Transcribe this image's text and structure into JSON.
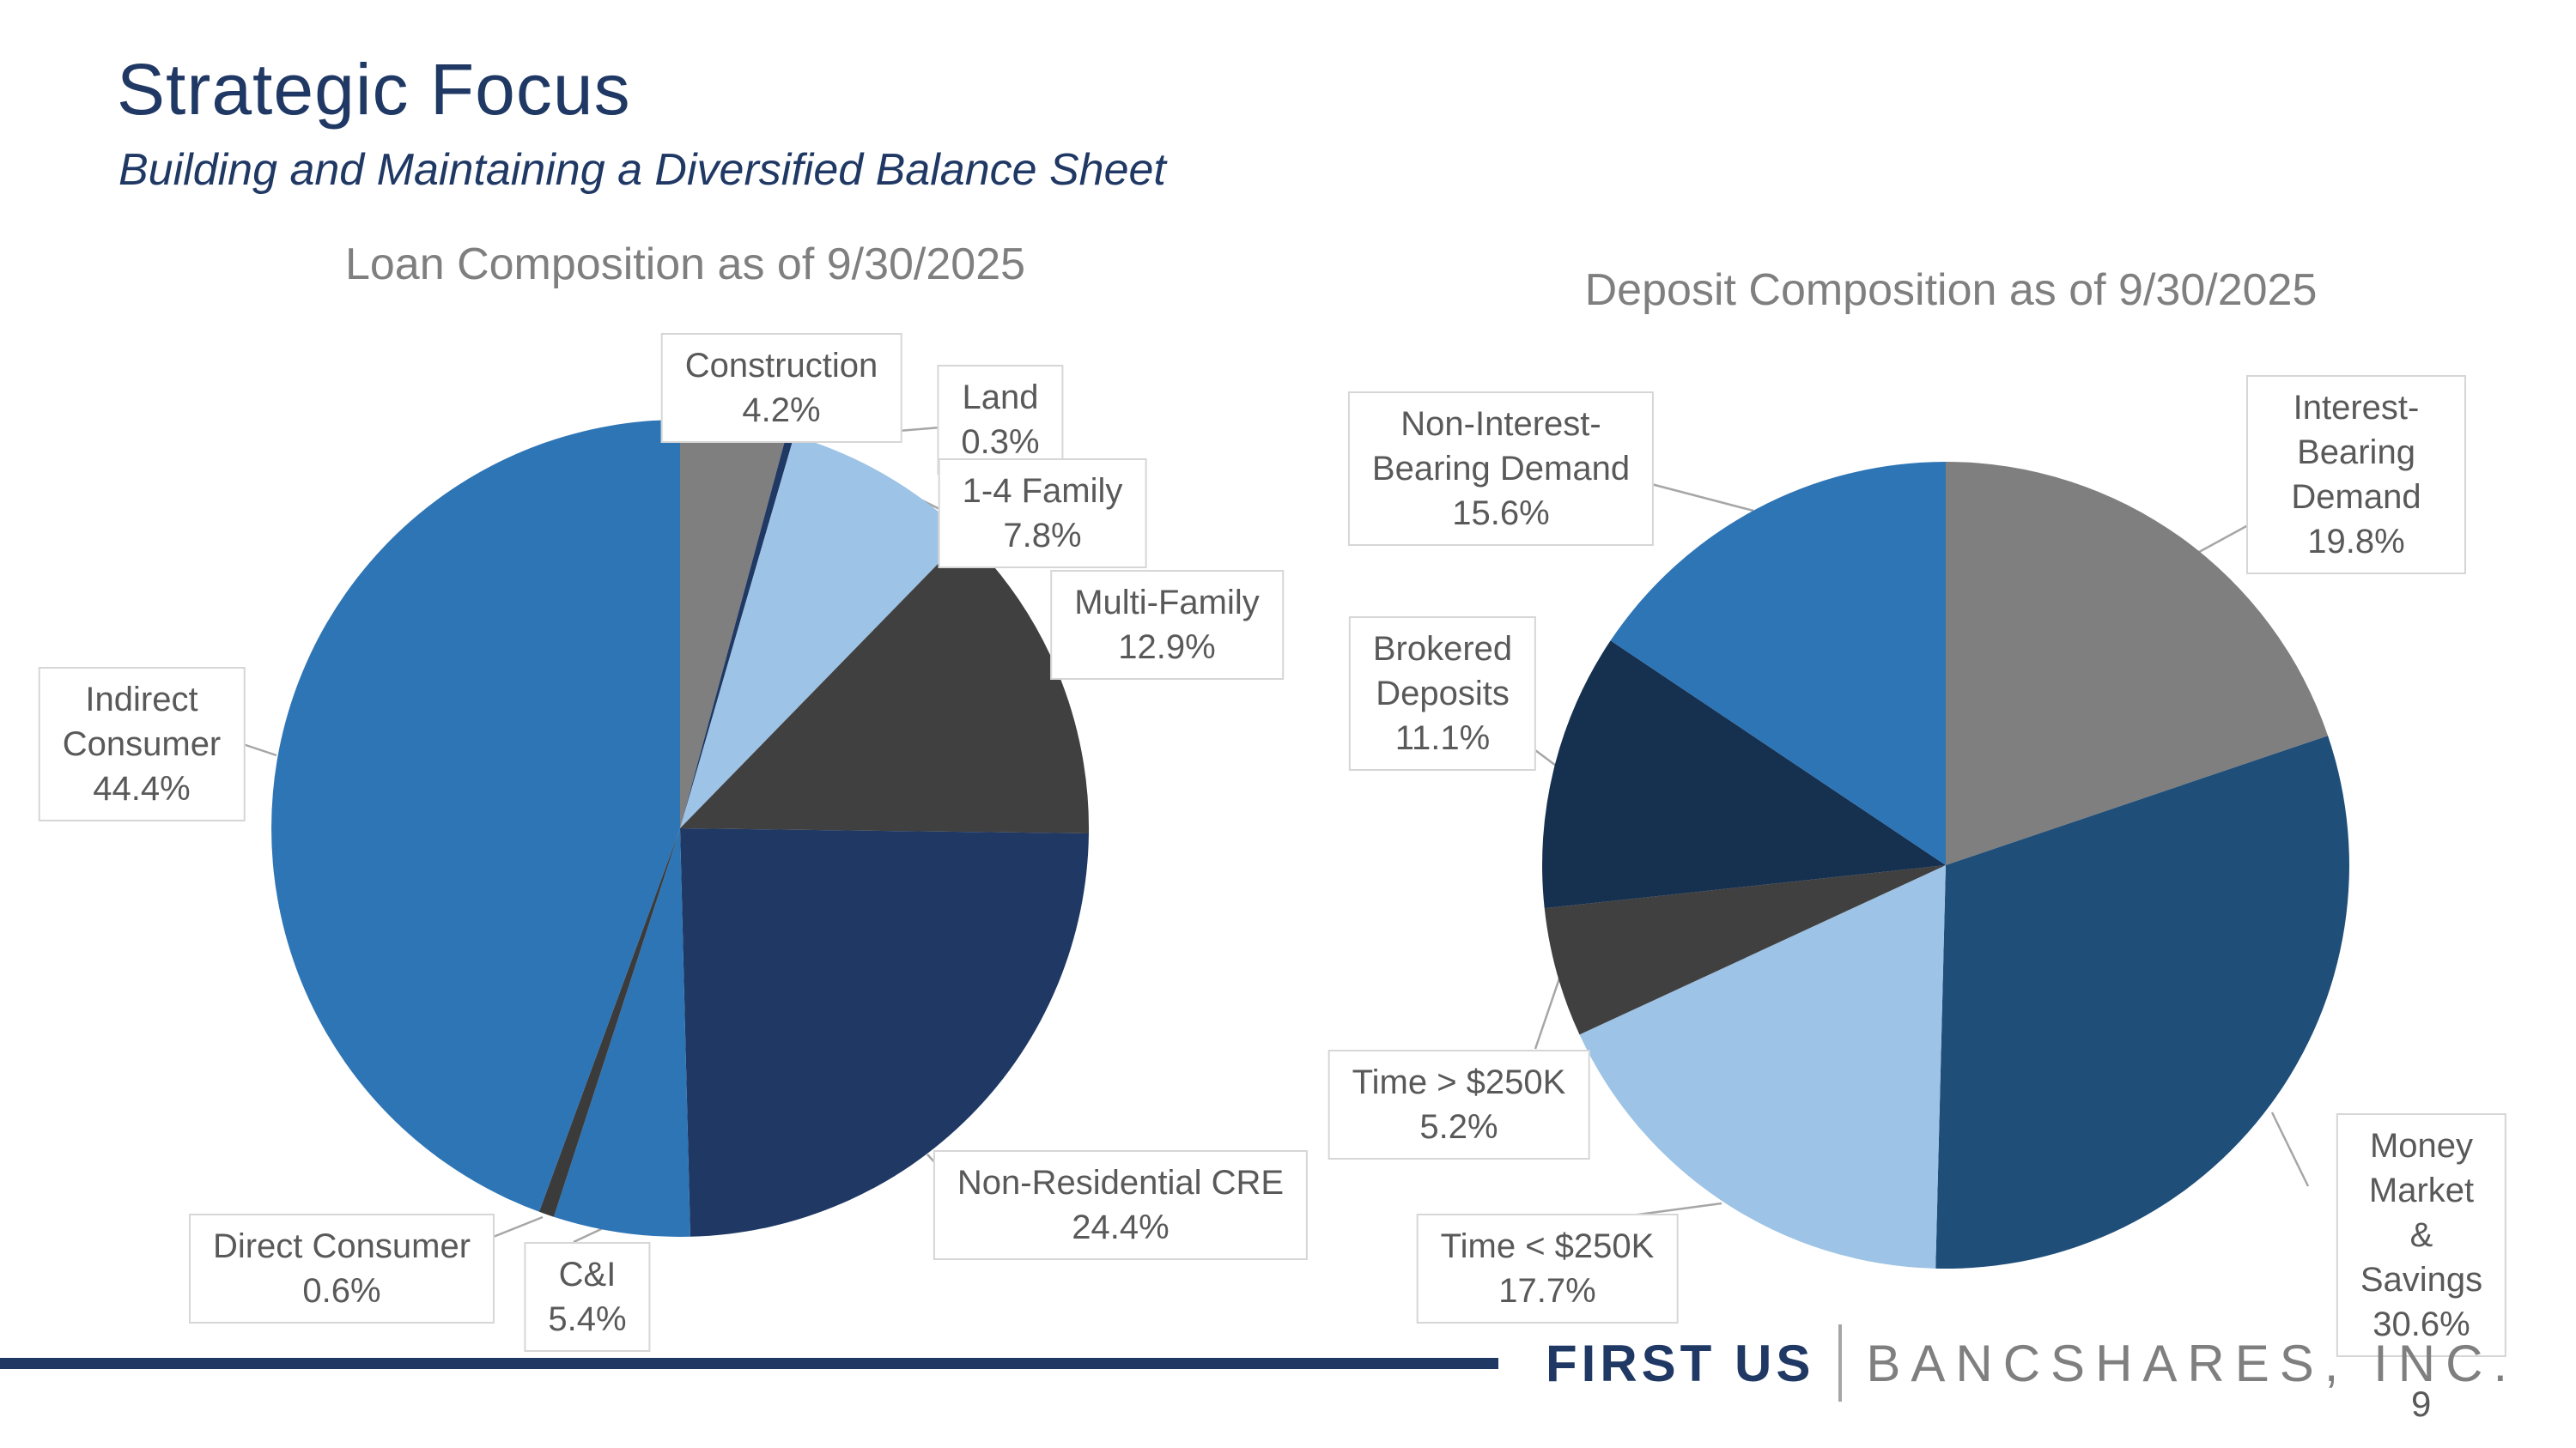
{
  "slide": {
    "title": "Strategic Focus",
    "subtitle": "Building and Maintaining a Diversified Balance Sheet",
    "page_number": "9",
    "footer": {
      "brand_left": "FIRST US",
      "brand_right": "BANCSHARES, INC."
    }
  },
  "colors": {
    "title_navy": "#1F3864",
    "chart_title_gray": "#7F7F7F",
    "callout_text": "#595959",
    "callout_border": "#D6D6D6",
    "leader_line": "#A6A6A6",
    "footer_rule": "#1F3864",
    "brand_gray": "#7F7F7F"
  },
  "chart_data": [
    {
      "type": "pie",
      "title": "Loan Composition as of 9/30/2025",
      "start_angle_deg": 0,
      "direction": "clockwise",
      "legend_position": "none",
      "slices": [
        {
          "name": "Construction",
          "value": 4.2,
          "color": "#7F7F7F",
          "label": "Construction\n4.2%"
        },
        {
          "name": "Land",
          "value": 0.3,
          "color": "#1F3864",
          "label": "Land\n0.3%"
        },
        {
          "name": "1-4 Family",
          "value": 7.8,
          "color": "#9DC3E6",
          "label": "1-4 Family\n7.8%"
        },
        {
          "name": "Multi-Family",
          "value": 12.9,
          "color": "#404040",
          "label": "Multi-Family\n12.9%"
        },
        {
          "name": "Non-Residential CRE",
          "value": 24.4,
          "color": "#1F3864",
          "label": "Non-Residential CRE\n24.4%"
        },
        {
          "name": "C&I",
          "value": 5.4,
          "color": "#2E75B6",
          "label": "C&I\n5.4%"
        },
        {
          "name": "Direct Consumer",
          "value": 0.6,
          "color": "#3B3B3B",
          "label": "Direct Consumer\n0.6%"
        },
        {
          "name": "Indirect Consumer",
          "value": 44.4,
          "color": "#2E75B6",
          "label": "Indirect\nConsumer\n44.4%"
        }
      ]
    },
    {
      "type": "pie",
      "title": "Deposit Composition as of 9/30/2025",
      "start_angle_deg": 0,
      "direction": "clockwise",
      "legend_position": "none",
      "slices": [
        {
          "name": "Interest-Bearing Demand",
          "value": 19.8,
          "color": "#7F7F7F",
          "label": "Interest-Bearing\nDemand\n19.8%"
        },
        {
          "name": "Money Market & Savings",
          "value": 30.6,
          "color": "#1F4E79",
          "label": "Money Market\n& Savings\n30.6%"
        },
        {
          "name": "Time < $250K",
          "value": 17.7,
          "color": "#9DC3E6",
          "label": "Time < $250K\n17.7%"
        },
        {
          "name": "Time > $250K",
          "value": 5.2,
          "color": "#404040",
          "label": "Time > $250K\n5.2%"
        },
        {
          "name": "Brokered Deposits",
          "value": 11.1,
          "color": "#16304F",
          "label": "Brokered\nDeposits\n11.1%"
        },
        {
          "name": "Non-Interest-Bearing Demand",
          "value": 15.6,
          "color": "#2E75B6",
          "label": "Non-Interest-\nBearing Demand\n15.6%"
        }
      ]
    }
  ]
}
